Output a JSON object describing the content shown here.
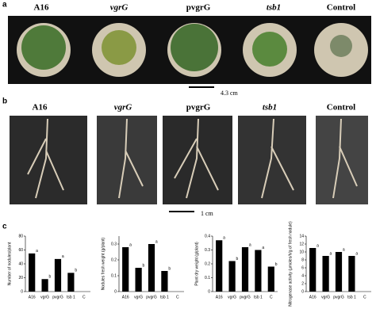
{
  "panels": {
    "a": {
      "letter": "a",
      "labels": [
        "A16",
        "vgrG",
        "pvgrG",
        "tsb1",
        "Control"
      ],
      "scale": "4.3 cm"
    },
    "b": {
      "letter": "b",
      "labels": [
        "A16",
        "vgrG",
        "pvgrG",
        "tsb1",
        "Control"
      ],
      "scale": "1 cm"
    },
    "c": {
      "letter": "c"
    }
  },
  "chart_data": [
    {
      "type": "bar",
      "ylabel": "Number of nodules/plant",
      "categories": [
        "A16",
        "vgrG",
        "pvgrG",
        "tsb 1",
        "C"
      ],
      "values": [
        55,
        18,
        47,
        27,
        0
      ],
      "annotations": [
        "a",
        "b",
        "a",
        "b",
        null
      ],
      "color": "#000000",
      "ylim": [
        0,
        80
      ],
      "yticks": [
        0,
        20,
        40,
        60,
        80
      ]
    },
    {
      "type": "bar",
      "ylabel": "Nodules fresh weight (g/plant)",
      "categories": [
        "A16",
        "vgrG",
        "pvgrG",
        "tsb 1",
        "C"
      ],
      "values": [
        0.28,
        0.15,
        0.3,
        0.13,
        0
      ],
      "annotations": [
        "a",
        "b",
        "a",
        "b",
        null
      ],
      "color": "#000000",
      "ylim": [
        0,
        0.35
      ],
      "yticks": [
        0,
        0.1,
        0.2,
        0.3
      ]
    },
    {
      "type": "bar",
      "ylabel": "Plant dry weight (g/plant)",
      "categories": [
        "A16",
        "vgrG",
        "pvgrG",
        "tsb 1",
        "C"
      ],
      "values": [
        0.37,
        0.22,
        0.32,
        0.3,
        0.18
      ],
      "annotations": [
        "a",
        "b",
        "a",
        "a",
        "b"
      ],
      "color": "#000000",
      "ylim": [
        0,
        0.4
      ],
      "yticks": [
        0,
        0.1,
        0.2,
        0.3,
        0.4
      ]
    },
    {
      "type": "bar",
      "ylabel": "Nitrogenase activity (µmoles/h/g of fresh nodule)",
      "categories": [
        "A16",
        "vgrG",
        "pvgrG",
        "tsb 1",
        "C"
      ],
      "values": [
        11,
        9,
        10,
        9,
        0
      ],
      "annotations": [
        "a",
        "a",
        "a",
        "a",
        null
      ],
      "color": "#000000",
      "ylim": [
        0,
        14
      ],
      "yticks": [
        0,
        2,
        4,
        6,
        8,
        10,
        12,
        14
      ]
    }
  ]
}
